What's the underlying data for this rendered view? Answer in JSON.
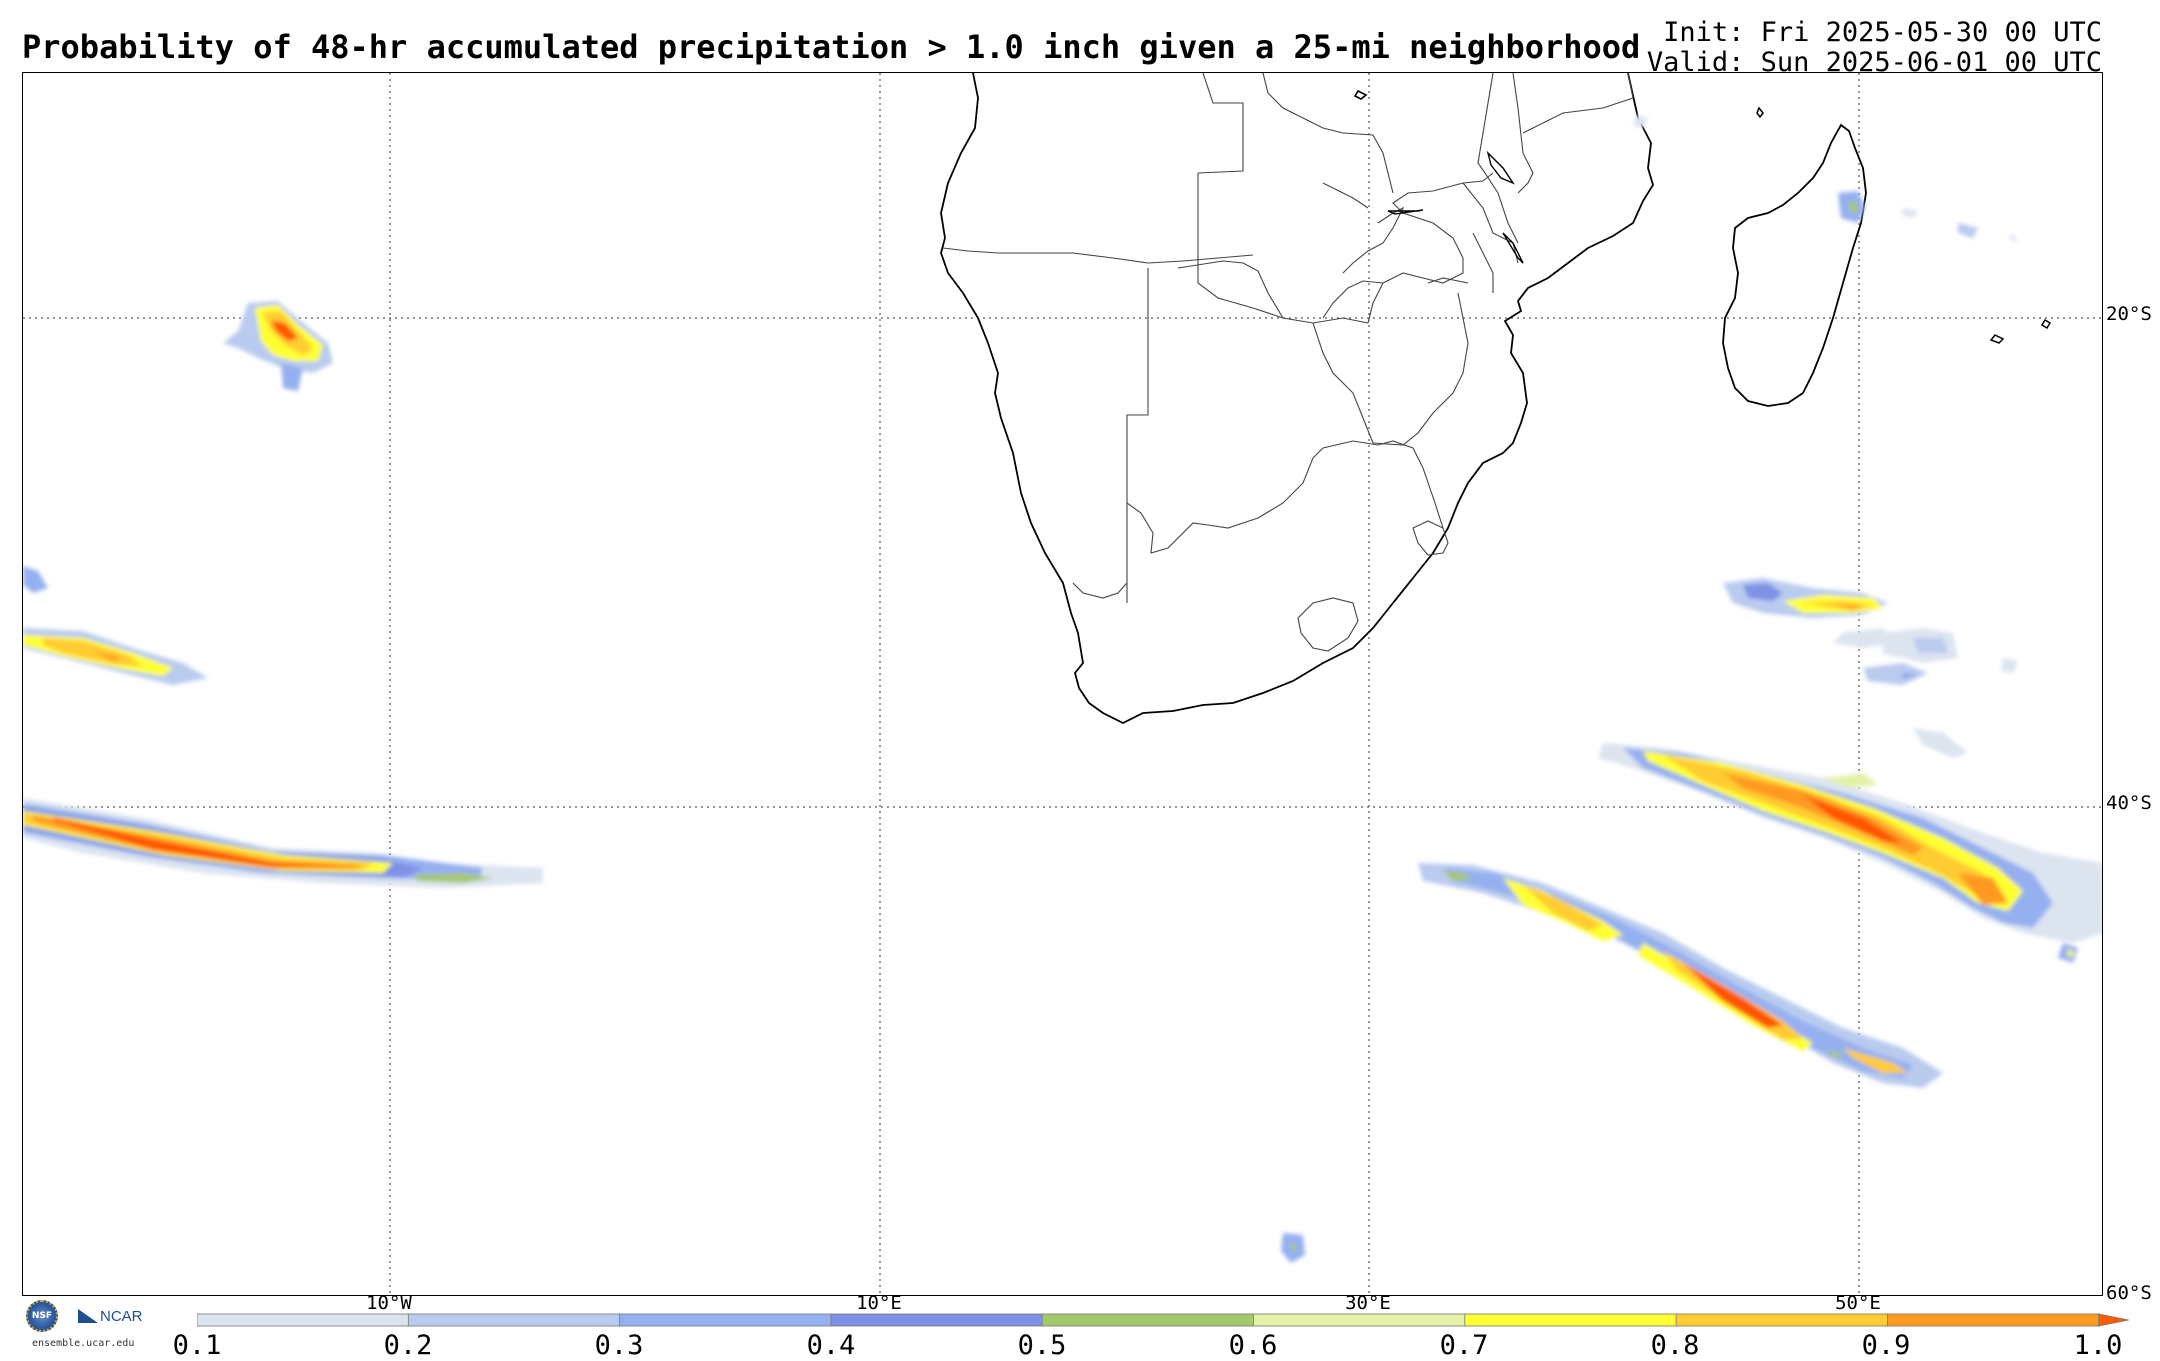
{
  "title": "Probability of 48-hr accumulated precipitation > 1.0 inch given a 25-mi neighborhood",
  "init": "Init: Fri 2025-05-30 00 UTC",
  "valid": "Valid: Sun 2025-06-01 00 UTC",
  "map": {
    "projection": "cylindrical",
    "lat_labels": [
      "20°S",
      "40°S",
      "60°S"
    ],
    "lon_labels": [
      "10°W",
      "10°E",
      "30°E",
      "50°E"
    ],
    "gridlines": "dotted",
    "background": "#ffffff",
    "coastline_color": "#000000",
    "border_color": "#555555"
  },
  "colorbar": {
    "tick_labels": [
      "0.1",
      "0.2",
      "0.3",
      "0.4",
      "0.5",
      "0.6",
      "0.7",
      "0.8",
      "0.9",
      "1.0"
    ],
    "colors": [
      "#dce4f0",
      "#b9cbef",
      "#95b0f0",
      "#7f92e6",
      "#a4c86e",
      "#e3f2a8",
      "#ffff33",
      "#ffcc33",
      "#ff9922"
    ],
    "extend": "max"
  },
  "logos": {
    "nsf": "NSF",
    "ncar": "NCAR",
    "url": "ensemble.ucar.edu"
  }
}
